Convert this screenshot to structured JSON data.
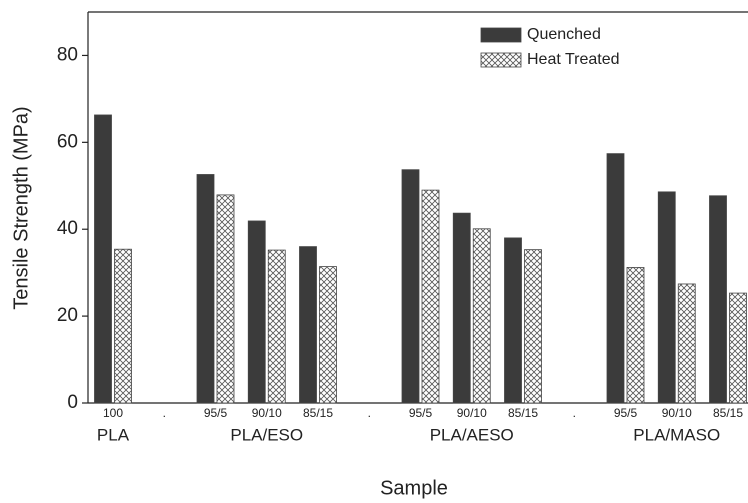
{
  "chart_data": {
    "type": "bar",
    "xlabel": "Sample",
    "ylabel": "Tensile Strength (MPa)",
    "categories": [
      "100",
      ".",
      "95/5",
      "90/10",
      "85/15",
      ".",
      "95/5",
      "90/10",
      "85/15",
      ".",
      "95/5",
      "90/10",
      "85/15"
    ],
    "group_labels": [
      "PLA",
      "PLA/ESO",
      "PLA/AESO",
      "PLA/MASO"
    ],
    "series": [
      {
        "name": "Quenched",
        "color": "#3b3b3b",
        "values": [
          66.3,
          null,
          52.6,
          41.9,
          36.0,
          null,
          53.7,
          43.7,
          38.0,
          null,
          57.4,
          48.6,
          47.7
        ]
      },
      {
        "name": "Heat Treated",
        "color": "#ffffff",
        "values": [
          35.4,
          null,
          47.9,
          35.2,
          31.4,
          null,
          49.0,
          40.1,
          35.3,
          null,
          31.2,
          27.4,
          25.3
        ]
      }
    ],
    "ylim": [
      0,
      90
    ],
    "yticks": [
      0,
      20,
      40,
      60,
      80
    ],
    "legend": "upper right"
  }
}
